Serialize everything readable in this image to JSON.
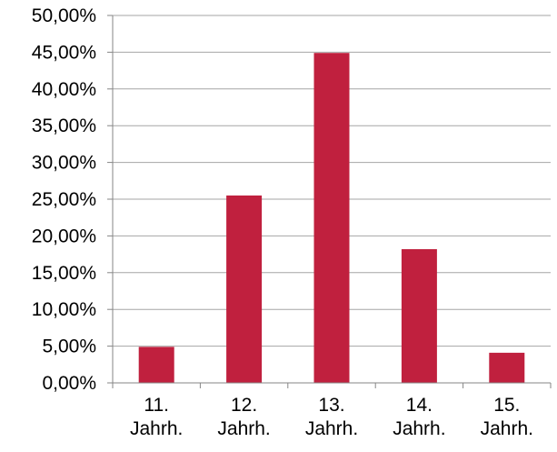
{
  "chart_data": {
    "type": "bar",
    "categories": [
      [
        "11.",
        "Jahrh."
      ],
      [
        "12.",
        "Jahrh."
      ],
      [
        "13.",
        "Jahrh."
      ],
      [
        "14.",
        "Jahrh."
      ],
      [
        "15.",
        "Jahrh."
      ]
    ],
    "values": [
      4.9,
      25.5,
      44.9,
      18.2,
      4.1
    ],
    "ylim": [
      0,
      50
    ],
    "yticks": [
      "0,00%",
      "5,00%",
      "10,00%",
      "15,00%",
      "20,00%",
      "25,00%",
      "30,00%",
      "35,00%",
      "40,00%",
      "45,00%",
      "50,00%"
    ],
    "title": "",
    "xlabel": "",
    "ylabel": "",
    "grid": true,
    "legend": "none",
    "colors": {
      "bar": "#C0203E",
      "grid": "#A6A6A6",
      "axis": "#868686"
    }
  }
}
